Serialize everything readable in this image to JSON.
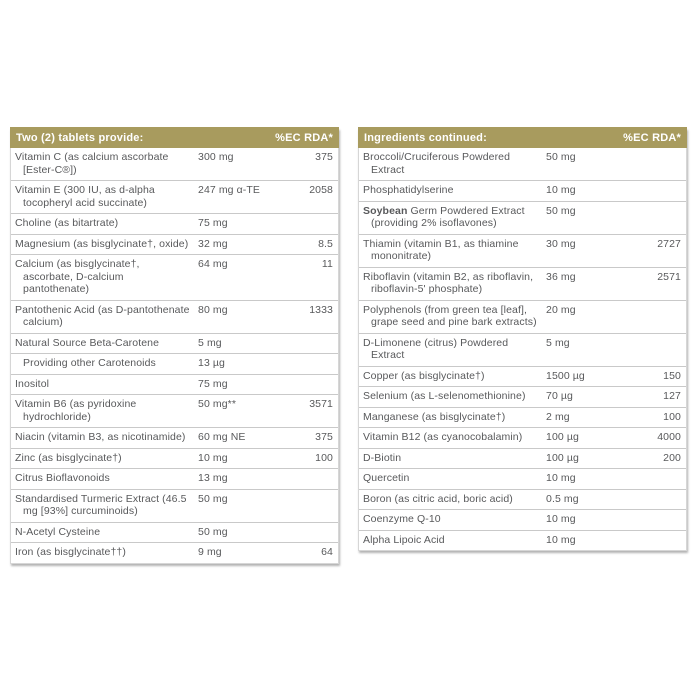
{
  "colors": {
    "header_bg": "#a89b5e",
    "header_text": "#ffffff",
    "body_text": "#58595b",
    "divider": "#c9c9c9"
  },
  "tables": [
    {
      "header": {
        "title": "Two (2) tablets provide:",
        "rda_label": "%EC RDA*"
      },
      "rows": [
        {
          "name": "Vitamin C (as calcium ascorbate [Ester-C®])",
          "amount": "300 mg",
          "rda": "375"
        },
        {
          "name": "Vitamin E (300 IU, as d-alpha tocopheryl acid succinate)",
          "amount": "247 mg α-TE",
          "rda": "2058"
        },
        {
          "name": "Choline (as bitartrate)",
          "amount": "75 mg",
          "rda": ""
        },
        {
          "name": "Magnesium (as bisglycinate†, oxide)",
          "amount": "32 mg",
          "rda": "8.5"
        },
        {
          "name": "Calcium (as bisglycinate†, ascorbate, D-calcium pantothenate)",
          "amount": "64 mg",
          "rda": "11"
        },
        {
          "name": "Pantothenic Acid (as D-pantothenate calcium)",
          "amount": "80 mg",
          "rda": "1333"
        },
        {
          "name": "Natural Source Beta-Carotene",
          "amount": "5 mg",
          "rda": ""
        },
        {
          "name": "Providing other Carotenoids",
          "amount": "13 µg",
          "rda": "",
          "indent": true
        },
        {
          "name": "Inositol",
          "amount": "75 mg",
          "rda": ""
        },
        {
          "name": "Vitamin B6 (as pyridoxine hydrochloride)",
          "amount": "50 mg**",
          "rda": "3571"
        },
        {
          "name": "Niacin (vitamin B3, as nicotinamide)",
          "amount": "60 mg NE",
          "rda": "375"
        },
        {
          "name": "Zinc (as bisglycinate†)",
          "amount": "10 mg",
          "rda": "100"
        },
        {
          "name": "Citrus Bioflavonoids",
          "amount": "13 mg",
          "rda": ""
        },
        {
          "name": "Standardised Turmeric Extract (46.5 mg [93%] curcuminoids)",
          "amount": "50 mg",
          "rda": ""
        },
        {
          "name": "N-Acetyl Cysteine",
          "amount": "50 mg",
          "rda": ""
        },
        {
          "name": "Iron (as bisglycinate††)",
          "amount": "9 mg",
          "rda": "64"
        }
      ]
    },
    {
      "header": {
        "title": "Ingredients continued:",
        "rda_label": "%EC RDA*"
      },
      "rows": [
        {
          "name": "Broccoli/Cruciferous Powdered Extract",
          "amount": "50 mg",
          "rda": ""
        },
        {
          "name": "Phosphatidylserine",
          "amount": "10 mg",
          "rda": ""
        },
        {
          "bold_prefix": "Soybean",
          "name": " Germ Powdered Extract (providing 2% isoflavones)",
          "amount": "50 mg",
          "rda": ""
        },
        {
          "name": "Thiamin (vitamin B1, as thiamine mononitrate)",
          "amount": "30 mg",
          "rda": "2727"
        },
        {
          "name": "Riboflavin (vitamin B2, as riboflavin, riboflavin-5' phosphate)",
          "amount": "36 mg",
          "rda": "2571"
        },
        {
          "name": "Polyphenols (from green tea [leaf], grape seed and pine bark extracts)",
          "amount": "20 mg",
          "rda": ""
        },
        {
          "name": "D-Limonene (citrus) Powdered Extract",
          "amount": "5 mg",
          "rda": ""
        },
        {
          "name": "Copper (as bisglycinate†)",
          "amount": "1500 µg",
          "rda": "150"
        },
        {
          "name": "Selenium (as L-selenomethionine)",
          "amount": "70 µg",
          "rda": "127"
        },
        {
          "name": "Manganese (as bisglycinate†)",
          "amount": "2 mg",
          "rda": "100"
        },
        {
          "name": "Vitamin B12 (as cyanocobalamin)",
          "amount": "100 µg",
          "rda": "4000"
        },
        {
          "name": "D-Biotin",
          "amount": "100 µg",
          "rda": "200"
        },
        {
          "name": "Quercetin",
          "amount": "10 mg",
          "rda": ""
        },
        {
          "name": "Boron (as citric acid, boric acid)",
          "amount": "0.5 mg",
          "rda": ""
        },
        {
          "name": "Coenzyme Q-10",
          "amount": "10 mg",
          "rda": ""
        },
        {
          "name": "Alpha Lipoic Acid",
          "amount": "10 mg",
          "rda": ""
        }
      ]
    }
  ]
}
